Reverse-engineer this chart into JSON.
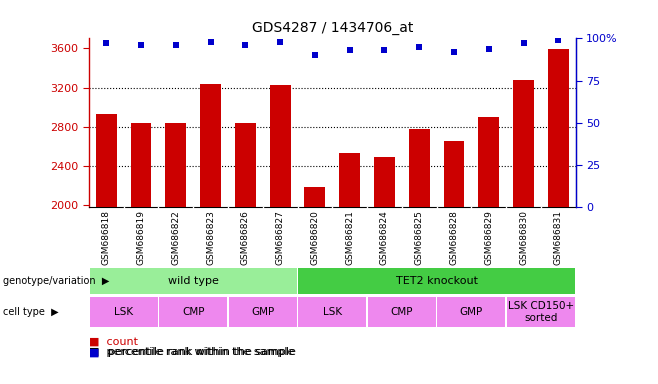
{
  "title": "GDS4287 / 1434706_at",
  "samples": [
    "GSM686818",
    "GSM686819",
    "GSM686822",
    "GSM686823",
    "GSM686826",
    "GSM686827",
    "GSM686820",
    "GSM686821",
    "GSM686824",
    "GSM686825",
    "GSM686828",
    "GSM686829",
    "GSM686830",
    "GSM686831"
  ],
  "counts": [
    2930,
    2840,
    2840,
    3240,
    2840,
    3230,
    2190,
    2530,
    2490,
    2780,
    2660,
    2900,
    3280,
    3590
  ],
  "percentile_ranks": [
    97,
    96,
    96,
    98,
    96,
    98,
    90,
    93,
    93,
    95,
    92,
    94,
    97,
    99
  ],
  "ylim_left": [
    1980,
    3700
  ],
  "ylim_right": [
    0,
    100
  ],
  "yticks_left": [
    2000,
    2400,
    2800,
    3200,
    3600
  ],
  "yticks_right": [
    0,
    25,
    50,
    75,
    100
  ],
  "bar_color": "#cc0000",
  "dot_color": "#0000cc",
  "grid_levels": [
    2400,
    2800,
    3200
  ],
  "genotype_groups": [
    {
      "label": "wild type",
      "start": 0,
      "end": 6,
      "color": "#99ee99"
    },
    {
      "label": "TET2 knockout",
      "start": 6,
      "end": 14,
      "color": "#44cc44"
    }
  ],
  "cell_type_groups": [
    {
      "label": "LSK",
      "start": 0,
      "end": 2,
      "color": "#ee88ee"
    },
    {
      "label": "CMP",
      "start": 2,
      "end": 4,
      "color": "#ee88ee"
    },
    {
      "label": "GMP",
      "start": 4,
      "end": 6,
      "color": "#ee88ee"
    },
    {
      "label": "LSK",
      "start": 6,
      "end": 8,
      "color": "#ee88ee"
    },
    {
      "label": "CMP",
      "start": 8,
      "end": 10,
      "color": "#ee88ee"
    },
    {
      "label": "GMP",
      "start": 10,
      "end": 12,
      "color": "#ee88ee"
    },
    {
      "label": "LSK CD150+\nsorted",
      "start": 12,
      "end": 14,
      "color": "#ee88ee"
    }
  ],
  "tick_color_left": "#cc0000",
  "tick_color_right": "#0000cc",
  "xtick_bg": "#cccccc"
}
